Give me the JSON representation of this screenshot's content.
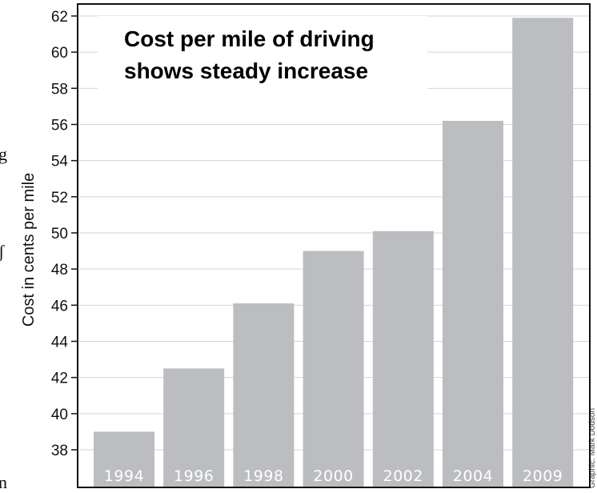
{
  "chart_data": {
    "type": "bar",
    "title_lines": [
      "Cost per mile of driving",
      "shows steady increase"
    ],
    "xlabel": "",
    "ylabel": "Cost in cents per mile",
    "categories": [
      "1994",
      "1996",
      "1998",
      "2000",
      "2002",
      "2004",
      "2009"
    ],
    "values": [
      39.0,
      42.5,
      46.1,
      49.0,
      50.1,
      56.2,
      61.9
    ],
    "ylim": [
      36.6,
      62.6
    ],
    "yticks": [
      38,
      40,
      42,
      44,
      46,
      48,
      50,
      52,
      54,
      56,
      58,
      60,
      62
    ],
    "grid": true,
    "bar_color": "#bcbdc0",
    "credit": "Graphic: Mark Dodson"
  },
  "stray_text": {
    "g": "g",
    "frag": "ʃ",
    "n": "n"
  }
}
